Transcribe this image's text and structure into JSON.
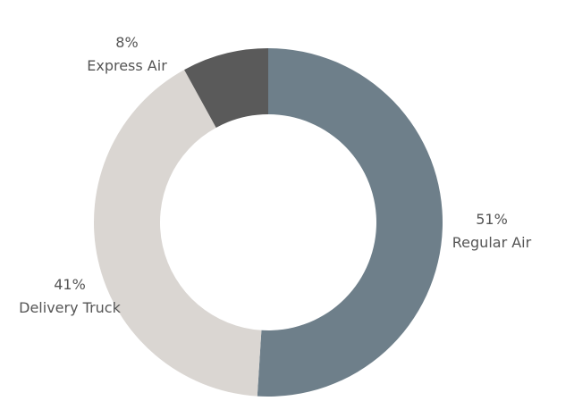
{
  "chart_data": {
    "type": "pie",
    "donut": true,
    "title": "",
    "slices": [
      {
        "label": "Regular Air",
        "value": 51,
        "value_label": "51%",
        "color": "#6e7f8a"
      },
      {
        "label": "Delivery Truck",
        "value": 41,
        "value_label": "41%",
        "color": "#dad6d2"
      },
      {
        "label": "Express Air",
        "value": 8,
        "value_label": "8%",
        "color": "#5a5a5a"
      }
    ],
    "start_angle": "12 o'clock",
    "direction": "clockwise",
    "legend": "none"
  }
}
